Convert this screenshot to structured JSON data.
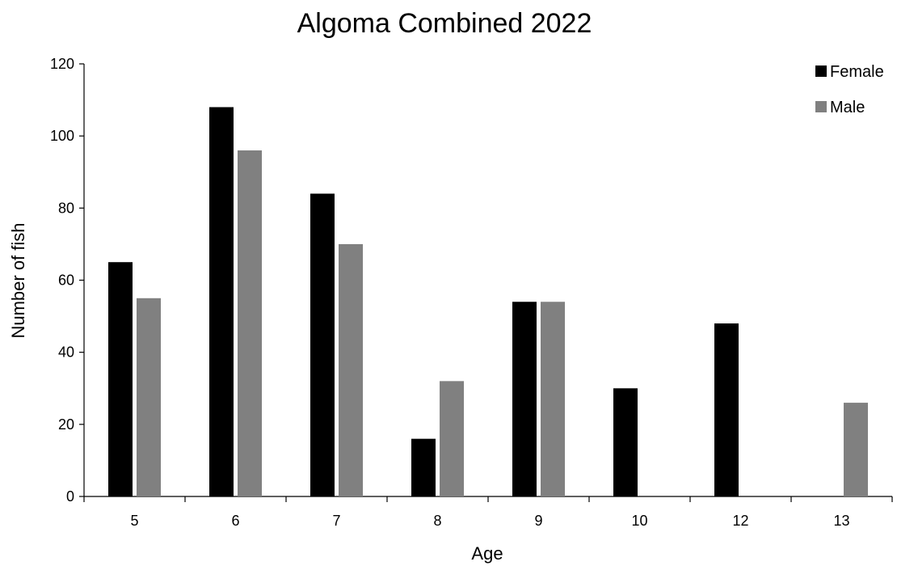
{
  "chart_data": {
    "type": "bar",
    "title": "Algoma Combined 2022",
    "xlabel": "Age",
    "ylabel": "Number of fish",
    "categories": [
      "5",
      "6",
      "7",
      "8",
      "9",
      "10",
      "12",
      "13"
    ],
    "series": [
      {
        "name": "Female",
        "color": "#000000",
        "values": [
          65,
          108,
          84,
          16,
          54,
          30,
          48,
          0
        ]
      },
      {
        "name": "Male",
        "color": "#808080",
        "values": [
          55,
          96,
          70,
          32,
          54,
          0,
          0,
          26
        ]
      }
    ],
    "ylim": [
      0,
      120
    ],
    "yticks": [
      "0",
      "20",
      "40",
      "60",
      "80",
      "100",
      "120"
    ],
    "grid": false,
    "legend_position": "top-right"
  }
}
